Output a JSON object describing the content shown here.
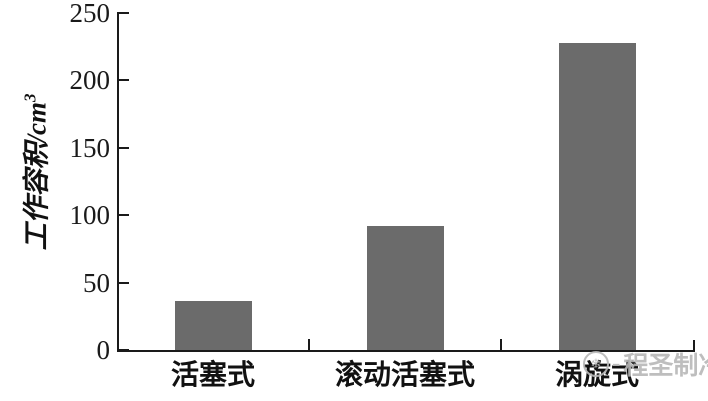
{
  "chart_data": {
    "type": "bar",
    "title": "",
    "categories": [
      "活塞式",
      "滚动活塞式",
      "涡旋式"
    ],
    "values": [
      36,
      92,
      228
    ],
    "series": [
      {
        "name": "工作容积",
        "values": [
          36,
          92,
          228
        ]
      }
    ],
    "xlabel": "",
    "ylabel": "工作容积/cm³",
    "ylabel_text": "工作容积/cm",
    "ylabel_sup": "3",
    "ylim": [
      0,
      250
    ],
    "yticks": [
      0,
      50,
      100,
      150,
      200,
      250
    ],
    "grid": false,
    "legend_position": "none",
    "bar_color": "#6b6b6b",
    "axis_color": "#1a1a1a"
  },
  "watermark": {
    "icon": "snowflake-logo",
    "separator": "-",
    "text": "程圣制冷",
    "color": "#b8b8b8"
  }
}
